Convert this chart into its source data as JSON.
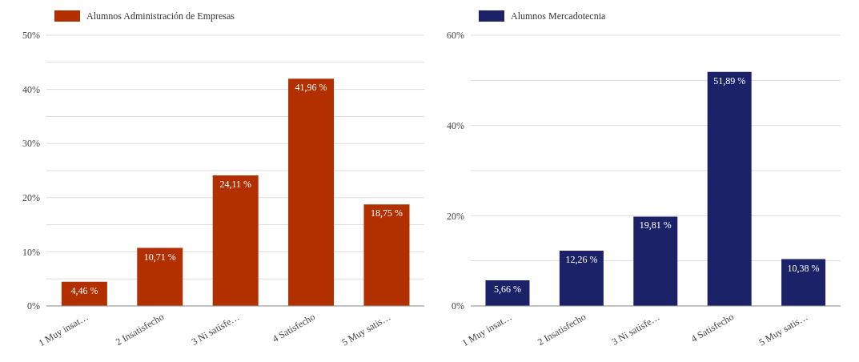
{
  "chart_data": [
    {
      "type": "bar",
      "categories": [
        "1 Muy insat…",
        "2 Insatisfecho",
        "3 Ni satisfe…",
        "4 Satisfecho",
        "5 Muy satis…"
      ],
      "series": [
        {
          "name": "Alumnos Administración de Empresas",
          "color": "#b22f00",
          "values": [
            4.46,
            10.71,
            24.11,
            41.96,
            18.75
          ],
          "value_labels": [
            "4,46 %",
            "10,71 %",
            "24,11 %",
            "41,96 %",
            "18,75 %"
          ]
        }
      ],
      "ylim": [
        0,
        50
      ],
      "yticks": [
        {
          "value": 0,
          "label": "0%"
        },
        {
          "value": 5,
          "label": null
        },
        {
          "value": 10,
          "label": "10%"
        },
        {
          "value": 15,
          "label": null
        },
        {
          "value": 20,
          "label": "20%"
        },
        {
          "value": 25,
          "label": null
        },
        {
          "value": 30,
          "label": "30%"
        },
        {
          "value": 35,
          "label": null
        },
        {
          "value": 40,
          "label": "40%"
        },
        {
          "value": 45,
          "label": null
        },
        {
          "value": 50,
          "label": "50%"
        }
      ],
      "grid": "y",
      "legend": "top left"
    },
    {
      "type": "bar",
      "categories": [
        "1 Muy insat…",
        "2 Insatisfecho",
        "3 Ni satisfe…",
        "4 Satisfecho",
        "5 Muy satis…"
      ],
      "series": [
        {
          "name": "Alumnos Mercadotecnia",
          "color": "#1b2268",
          "values": [
            5.66,
            12.26,
            19.81,
            51.89,
            10.38
          ],
          "value_labels": [
            "5,66 %",
            "12,26 %",
            "19,81 %",
            "51,89 %",
            "10,38 %"
          ]
        }
      ],
      "ylim": [
        0,
        60
      ],
      "yticks": [
        {
          "value": 0,
          "label": "0%"
        },
        {
          "value": 10,
          "label": null
        },
        {
          "value": 20,
          "label": "20%"
        },
        {
          "value": 30,
          "label": null
        },
        {
          "value": 40,
          "label": "40%"
        },
        {
          "value": 50,
          "label": null
        },
        {
          "value": 60,
          "label": "60%"
        }
      ],
      "grid": "y",
      "legend": "top left"
    }
  ]
}
